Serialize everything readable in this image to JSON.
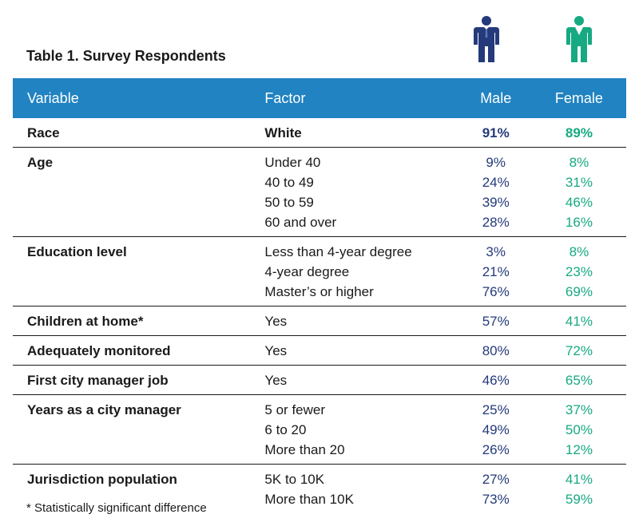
{
  "title": "Table 1. Survey Respondents",
  "icons": {
    "male": "male-person-icon",
    "female": "female-person-icon"
  },
  "colors": {
    "header": "#2183c1",
    "male": "#243a7a",
    "female": "#17a982"
  },
  "headers": {
    "variable": "Variable",
    "factor": "Factor",
    "male": "Male",
    "female": "Female"
  },
  "groups": [
    {
      "variable": "Race",
      "rows": [
        {
          "factor": "White",
          "male": "91%",
          "female": "89%"
        }
      ]
    },
    {
      "variable": "Age",
      "rows": [
        {
          "factor": "Under 40",
          "male": "9%",
          "female": "8%"
        },
        {
          "factor": "40 to 49",
          "male": "24%",
          "female": "31%"
        },
        {
          "factor": "50 to 59",
          "male": "39%",
          "female": "46%"
        },
        {
          "factor": "60 and over",
          "male": "28%",
          "female": "16%"
        }
      ]
    },
    {
      "variable": "Education level",
      "rows": [
        {
          "factor": "Less than 4-year degree",
          "male": "3%",
          "female": "8%"
        },
        {
          "factor": "4-year degree",
          "male": "21%",
          "female": "23%"
        },
        {
          "factor": "Master’s or higher",
          "male": "76%",
          "female": "69%"
        }
      ]
    },
    {
      "variable": "Children at home*",
      "rows": [
        {
          "factor": "Yes",
          "male": "57%",
          "female": "41%"
        }
      ]
    },
    {
      "variable": "Adequately monitored",
      "rows": [
        {
          "factor": "Yes",
          "male": "80%",
          "female": "72%"
        }
      ]
    },
    {
      "variable": "First city manager job",
      "rows": [
        {
          "factor": "Yes",
          "male": "46%",
          "female": "65%"
        }
      ]
    },
    {
      "variable": "Years as a city manager",
      "rows": [
        {
          "factor": "5 or fewer",
          "male": "25%",
          "female": "37%"
        },
        {
          "factor": "6 to 20",
          "male": "49%",
          "female": "50%"
        },
        {
          "factor": "More than 20",
          "male": "26%",
          "female": "12%"
        }
      ]
    },
    {
      "variable": "Jurisdiction population",
      "rows": [
        {
          "factor": "5K to 10K",
          "male": "27%",
          "female": "41%"
        },
        {
          "factor": "More than 10K",
          "male": "73%",
          "female": "59%"
        }
      ]
    }
  ],
  "footnote": "* Statistically significant difference"
}
